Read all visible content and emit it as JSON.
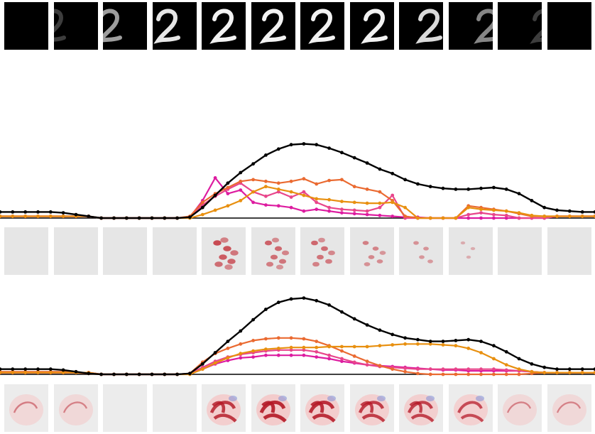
{
  "frames": {
    "count": 12,
    "digit": "2",
    "visibility": [
      0.0,
      0.15,
      0.55,
      0.85,
      1.0,
      1.0,
      1.0,
      1.0,
      0.8,
      0.45,
      0.15,
      0.0
    ],
    "shift": [
      -40,
      -32,
      -22,
      -10,
      0,
      0,
      0,
      4,
      12,
      24,
      34,
      44
    ]
  },
  "chart_data": [
    {
      "type": "line",
      "title": "",
      "xlabel": "",
      "ylabel": "",
      "ylim": [
        0,
        1
      ],
      "grid": false,
      "x": [
        0,
        1,
        2,
        3,
        4,
        5,
        6,
        7,
        8,
        9,
        10,
        11,
        12,
        13,
        14,
        15,
        16,
        17,
        18,
        19,
        20,
        21,
        22,
        23,
        24,
        25,
        26,
        27,
        28,
        29,
        30,
        31,
        32,
        33,
        34,
        35,
        36,
        37,
        38,
        39,
        40,
        41,
        42,
        43,
        44,
        45,
        46,
        47
      ],
      "series": [
        {
          "color": "#000000",
          "values": [
            0.07,
            0.07,
            0.07,
            0.07,
            0.07,
            0.06,
            0.04,
            0.02,
            0.0,
            0.0,
            0.0,
            0.0,
            0.0,
            0.0,
            0.0,
            0.01,
            0.12,
            0.26,
            0.4,
            0.52,
            0.62,
            0.72,
            0.79,
            0.84,
            0.85,
            0.84,
            0.8,
            0.75,
            0.69,
            0.63,
            0.56,
            0.51,
            0.44,
            0.39,
            0.36,
            0.34,
            0.33,
            0.33,
            0.34,
            0.35,
            0.33,
            0.28,
            0.2,
            0.12,
            0.09,
            0.08,
            0.07,
            0.07
          ]
        },
        {
          "color": "#dd1ca0",
          "values": [
            0.02,
            0.02,
            0.02,
            0.02,
            0.02,
            0.02,
            0.02,
            0.02,
            0.0,
            0.0,
            0.0,
            0.0,
            0.0,
            0.0,
            0.0,
            0.01,
            0.2,
            0.46,
            0.28,
            0.32,
            0.18,
            0.15,
            0.14,
            0.12,
            0.08,
            0.1,
            0.08,
            0.06,
            0.05,
            0.04,
            0.03,
            0.02,
            0.01,
            0.01,
            0.0,
            0.0,
            0.0,
            0.0,
            0.0,
            0.0,
            0.0,
            0.0,
            0.0,
            0.0,
            0.02,
            0.02,
            0.02,
            0.02
          ]
        },
        {
          "color": "#e8458b",
          "values": [
            0.02,
            0.02,
            0.02,
            0.02,
            0.02,
            0.02,
            0.02,
            0.02,
            0.0,
            0.0,
            0.0,
            0.0,
            0.0,
            0.0,
            0.0,
            0.01,
            0.15,
            0.25,
            0.33,
            0.4,
            0.3,
            0.25,
            0.3,
            0.24,
            0.3,
            0.18,
            0.12,
            0.1,
            0.09,
            0.08,
            0.12,
            0.26,
            0.0,
            0.0,
            0.0,
            0.0,
            0.0,
            0.04,
            0.06,
            0.04,
            0.03,
            0.0,
            0.0,
            0.0,
            0.02,
            0.02,
            0.02,
            0.02
          ]
        },
        {
          "color": "#ea6a31",
          "values": [
            0.02,
            0.02,
            0.02,
            0.02,
            0.02,
            0.02,
            0.02,
            0.02,
            0.0,
            0.0,
            0.0,
            0.0,
            0.0,
            0.0,
            0.0,
            0.02,
            0.18,
            0.28,
            0.35,
            0.42,
            0.44,
            0.42,
            0.4,
            0.42,
            0.45,
            0.39,
            0.43,
            0.44,
            0.36,
            0.33,
            0.3,
            0.2,
            0.02,
            0.0,
            0.0,
            0.0,
            0.0,
            0.14,
            0.12,
            0.1,
            0.08,
            0.05,
            0.02,
            0.02,
            0.02,
            0.02,
            0.02,
            0.02
          ]
        },
        {
          "color": "#e89010",
          "values": [
            0.02,
            0.02,
            0.02,
            0.02,
            0.02,
            0.02,
            0.02,
            0.02,
            0.0,
            0.0,
            0.0,
            0.0,
            0.0,
            0.0,
            0.0,
            0.0,
            0.04,
            0.09,
            0.14,
            0.2,
            0.3,
            0.36,
            0.33,
            0.3,
            0.26,
            0.22,
            0.21,
            0.19,
            0.18,
            0.17,
            0.17,
            0.18,
            0.12,
            0.0,
            0.0,
            0.0,
            0.0,
            0.12,
            0.1,
            0.09,
            0.08,
            0.06,
            0.03,
            0.02,
            0.02,
            0.02,
            0.02,
            0.02
          ]
        }
      ]
    },
    {
      "type": "line",
      "title": "",
      "xlabel": "",
      "ylabel": "",
      "ylim": [
        0,
        1
      ],
      "grid": false,
      "x": [
        0,
        1,
        2,
        3,
        4,
        5,
        6,
        7,
        8,
        9,
        10,
        11,
        12,
        13,
        14,
        15,
        16,
        17,
        18,
        19,
        20,
        21,
        22,
        23,
        24,
        25,
        26,
        27,
        28,
        29,
        30,
        31,
        32,
        33,
        34,
        35,
        36,
        37,
        38,
        39,
        40,
        41,
        42,
        43,
        44,
        45,
        46,
        47
      ],
      "series": [
        {
          "color": "#000000",
          "values": [
            0.06,
            0.06,
            0.06,
            0.06,
            0.06,
            0.05,
            0.03,
            0.01,
            0.0,
            0.0,
            0.0,
            0.0,
            0.0,
            0.0,
            0.0,
            0.01,
            0.12,
            0.25,
            0.38,
            0.5,
            0.63,
            0.75,
            0.83,
            0.87,
            0.88,
            0.85,
            0.8,
            0.72,
            0.64,
            0.57,
            0.51,
            0.46,
            0.42,
            0.4,
            0.38,
            0.38,
            0.39,
            0.4,
            0.38,
            0.33,
            0.26,
            0.18,
            0.12,
            0.08,
            0.06,
            0.06,
            0.06,
            0.06
          ]
        },
        {
          "color": "#dd1ca0",
          "values": [
            0.02,
            0.02,
            0.02,
            0.02,
            0.02,
            0.02,
            0.02,
            0.02,
            0.0,
            0.0,
            0.0,
            0.0,
            0.0,
            0.0,
            0.0,
            0.01,
            0.06,
            0.12,
            0.16,
            0.19,
            0.2,
            0.22,
            0.22,
            0.22,
            0.22,
            0.2,
            0.18,
            0.15,
            0.13,
            0.11,
            0.1,
            0.09,
            0.08,
            0.07,
            0.06,
            0.05,
            0.05,
            0.04,
            0.04,
            0.04,
            0.04,
            0.04,
            0.03,
            0.02,
            0.02,
            0.02,
            0.02,
            0.02
          ]
        },
        {
          "color": "#e8458b",
          "values": [
            0.02,
            0.02,
            0.02,
            0.02,
            0.02,
            0.02,
            0.02,
            0.02,
            0.0,
            0.0,
            0.0,
            0.0,
            0.0,
            0.0,
            0.0,
            0.01,
            0.08,
            0.15,
            0.2,
            0.23,
            0.25,
            0.27,
            0.28,
            0.28,
            0.28,
            0.26,
            0.22,
            0.18,
            0.14,
            0.11,
            0.09,
            0.08,
            0.07,
            0.06,
            0.06,
            0.06,
            0.06,
            0.06,
            0.06,
            0.06,
            0.05,
            0.04,
            0.03,
            0.02,
            0.02,
            0.02,
            0.02,
            0.02
          ]
        },
        {
          "color": "#ea6a31",
          "values": [
            0.03,
            0.03,
            0.03,
            0.03,
            0.03,
            0.03,
            0.02,
            0.01,
            0.0,
            0.0,
            0.0,
            0.0,
            0.0,
            0.0,
            0.0,
            0.01,
            0.14,
            0.24,
            0.3,
            0.35,
            0.39,
            0.41,
            0.42,
            0.42,
            0.41,
            0.38,
            0.33,
            0.27,
            0.21,
            0.15,
            0.1,
            0.06,
            0.03,
            0.01,
            0.0,
            0.0,
            0.0,
            0.0,
            0.0,
            0.0,
            0.0,
            0.0,
            0.01,
            0.02,
            0.02,
            0.02,
            0.02,
            0.02
          ]
        },
        {
          "color": "#e89010",
          "values": [
            0.02,
            0.02,
            0.02,
            0.02,
            0.02,
            0.02,
            0.02,
            0.02,
            0.0,
            0.0,
            0.0,
            0.0,
            0.0,
            0.0,
            0.0,
            0.0,
            0.06,
            0.13,
            0.19,
            0.24,
            0.27,
            0.29,
            0.3,
            0.31,
            0.31,
            0.31,
            0.32,
            0.32,
            0.32,
            0.32,
            0.33,
            0.34,
            0.35,
            0.35,
            0.35,
            0.34,
            0.33,
            0.3,
            0.25,
            0.18,
            0.11,
            0.06,
            0.03,
            0.02,
            0.02,
            0.02,
            0.02,
            0.02
          ]
        }
      ]
    }
  ],
  "heatmaps": [
    {
      "intensity": [
        0,
        0,
        0,
        0,
        0.9,
        0.7,
        0.65,
        0.45,
        0.3,
        0.08,
        0,
        0
      ]
    },
    {
      "intensity": [
        0.15,
        0.12,
        0,
        0,
        0.85,
        1.0,
        0.95,
        0.8,
        0.75,
        0.65,
        0.12,
        0.1
      ]
    }
  ]
}
